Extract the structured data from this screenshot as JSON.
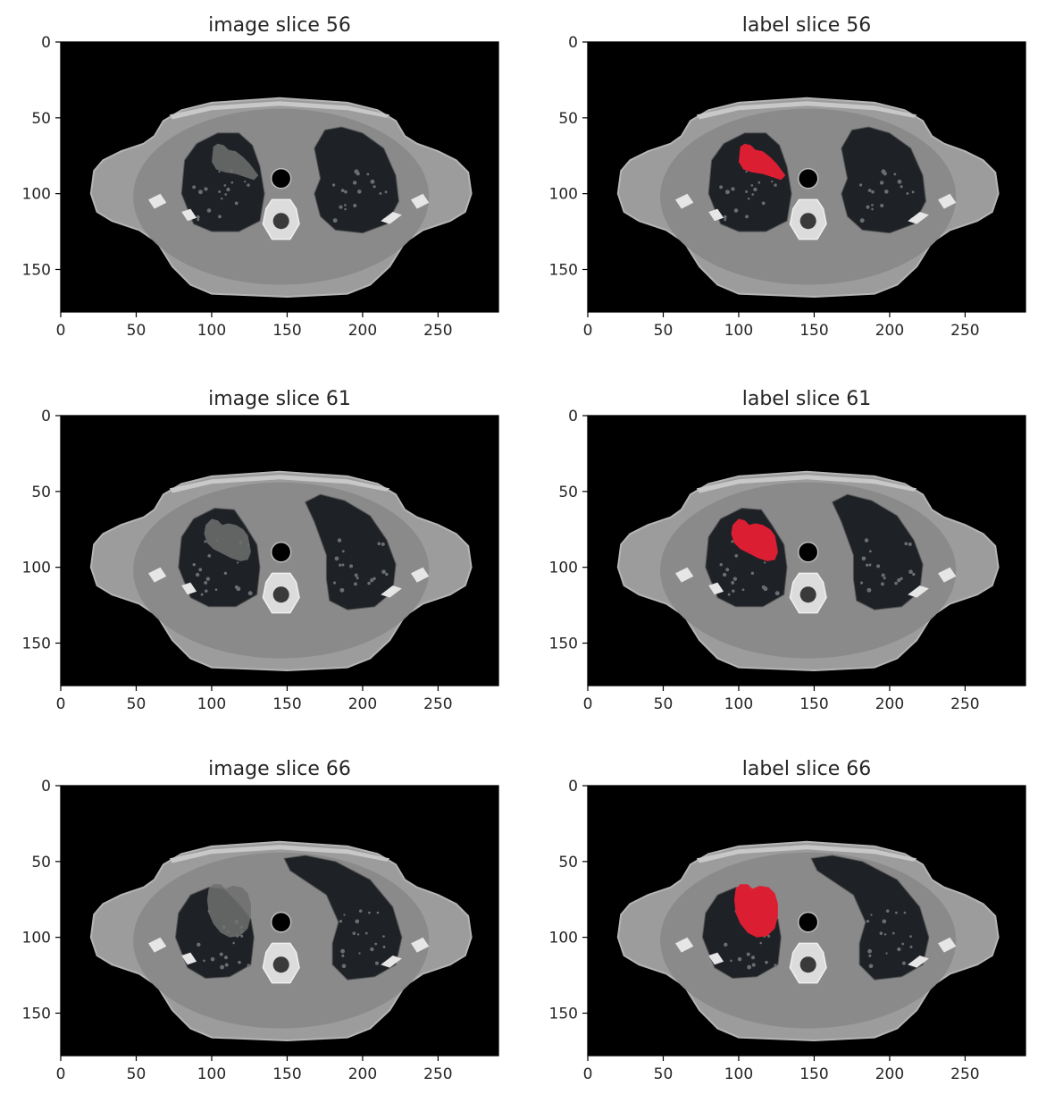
{
  "figure": {
    "panels": [
      {
        "id": "image-56",
        "title": "image slice 56",
        "kind": "image",
        "slice": 56,
        "variant": 0
      },
      {
        "id": "label-56",
        "title": "label slice 56",
        "kind": "label",
        "slice": 56,
        "variant": 0
      },
      {
        "id": "image-61",
        "title": "image slice 61",
        "kind": "image",
        "slice": 61,
        "variant": 1
      },
      {
        "id": "label-61",
        "title": "label slice 61",
        "kind": "label",
        "slice": 61,
        "variant": 1
      },
      {
        "id": "image-66",
        "title": "image slice 66",
        "kind": "image",
        "slice": 66,
        "variant": 2
      },
      {
        "id": "label-66",
        "title": "label slice 66",
        "kind": "label",
        "slice": 66,
        "variant": 2
      }
    ],
    "x_ticks": [
      "0",
      "50",
      "100",
      "150",
      "200",
      "250"
    ],
    "y_ticks": [
      "0",
      "50",
      "100",
      "150"
    ],
    "x_range": [
      0,
      290
    ],
    "y_range": [
      0,
      178
    ],
    "colors": {
      "background": "#000000",
      "body": "#8a8a8a",
      "fat": "#9c9c9c",
      "lung": "#1e2226",
      "bone": "#e6e6e6",
      "airway": "#000000",
      "tumor_label": "#dc1e32"
    }
  }
}
